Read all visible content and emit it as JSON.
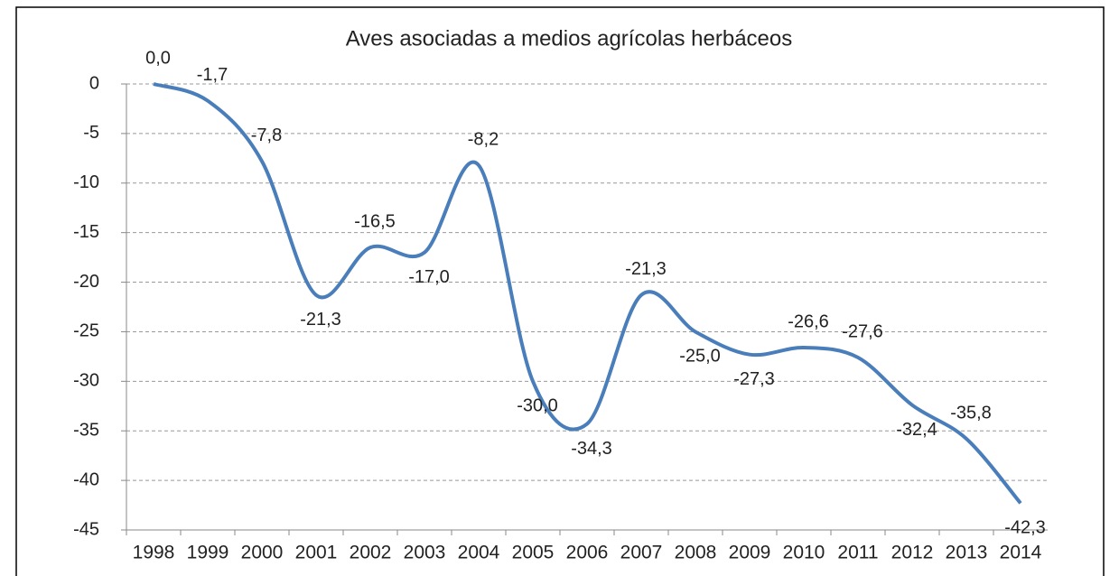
{
  "chart_data": {
    "type": "line",
    "title": "Aves asociadas a medios agrícolas herbáceos",
    "categories": [
      "1998",
      "1999",
      "2000",
      "2001",
      "2002",
      "2003",
      "2004",
      "2005",
      "2006",
      "2007",
      "2008",
      "2009",
      "2010",
      "2011",
      "2012",
      "2013",
      "2014"
    ],
    "series": [
      {
        "name": "Aves asociadas a medios agrícolas herbáceos",
        "color": "#4a7ebb",
        "values": [
          0.0,
          -1.7,
          -7.8,
          -21.3,
          -16.5,
          -17.0,
          -8.2,
          -30.0,
          -34.3,
          -21.3,
          -25.0,
          -27.3,
          -26.6,
          -27.6,
          -32.4,
          -35.8,
          -42.3
        ],
        "value_labels": [
          "0,0",
          "-1,7",
          "-7,8",
          "-21,3",
          "-16,5",
          "-17,0",
          "-8,2",
          "-30,0",
          "-34,3",
          "-21,3",
          "-25,0",
          "-27,3",
          "-26,6",
          "-27,6",
          "-32,4",
          "-35,8",
          "-42,3"
        ]
      }
    ],
    "ylim": [
      -45,
      0
    ],
    "yticks": [
      0,
      -5,
      -10,
      -15,
      -20,
      -25,
      -30,
      -35,
      -40,
      -45
    ],
    "grid": true
  }
}
